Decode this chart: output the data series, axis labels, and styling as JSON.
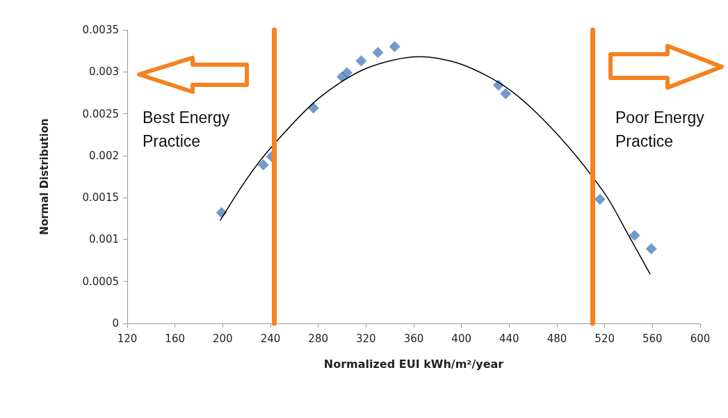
{
  "chart_data": {
    "type": "scatter",
    "xlabel": "Normalized EUI kWh/m²/year",
    "ylabel": "Normal Distribution",
    "xlim": [
      120,
      600
    ],
    "xticks": [
      120,
      160,
      200,
      240,
      280,
      320,
      360,
      400,
      440,
      480,
      520,
      560,
      600
    ],
    "ylim": [
      0,
      0.0035
    ],
    "yticks": [
      0,
      0.0005,
      0.001,
      0.0015,
      0.002,
      0.0025,
      0.003,
      0.0035
    ],
    "grid": false,
    "marker": "diamond",
    "series": [
      {
        "color": "#4f81bd",
        "x": [
          199,
          234,
          241,
          276,
          300,
          304,
          316,
          330,
          344,
          431,
          437,
          516,
          545,
          559
        ],
        "values": [
          0.00132,
          0.00189,
          0.00199,
          0.00257,
          0.00294,
          0.00299,
          0.00313,
          0.00323,
          0.0033,
          0.00284,
          0.00274,
          0.00148,
          0.00105,
          0.00089
        ]
      },
      {
        "type": "line",
        "color": "#000000",
        "marker": "none",
        "line_style": "solid",
        "x": [
          198,
          220,
          240,
          280,
          320,
          365,
          400,
          440,
          480,
          520,
          540,
          558
        ],
        "values": [
          0.00123,
          0.00172,
          0.00209,
          0.00268,
          0.00304,
          0.00318,
          0.00309,
          0.00279,
          0.00226,
          0.00155,
          0.00105,
          0.00059
        ]
      }
    ],
    "ref_lines": [
      {
        "axis": "x",
        "value": 243,
        "color": "#f58220"
      },
      {
        "axis": "x",
        "value": 510,
        "color": "#f58220"
      }
    ],
    "annotations": [
      "Best Energy\nPractice",
      "Poor Energy\nPractice"
    ]
  }
}
